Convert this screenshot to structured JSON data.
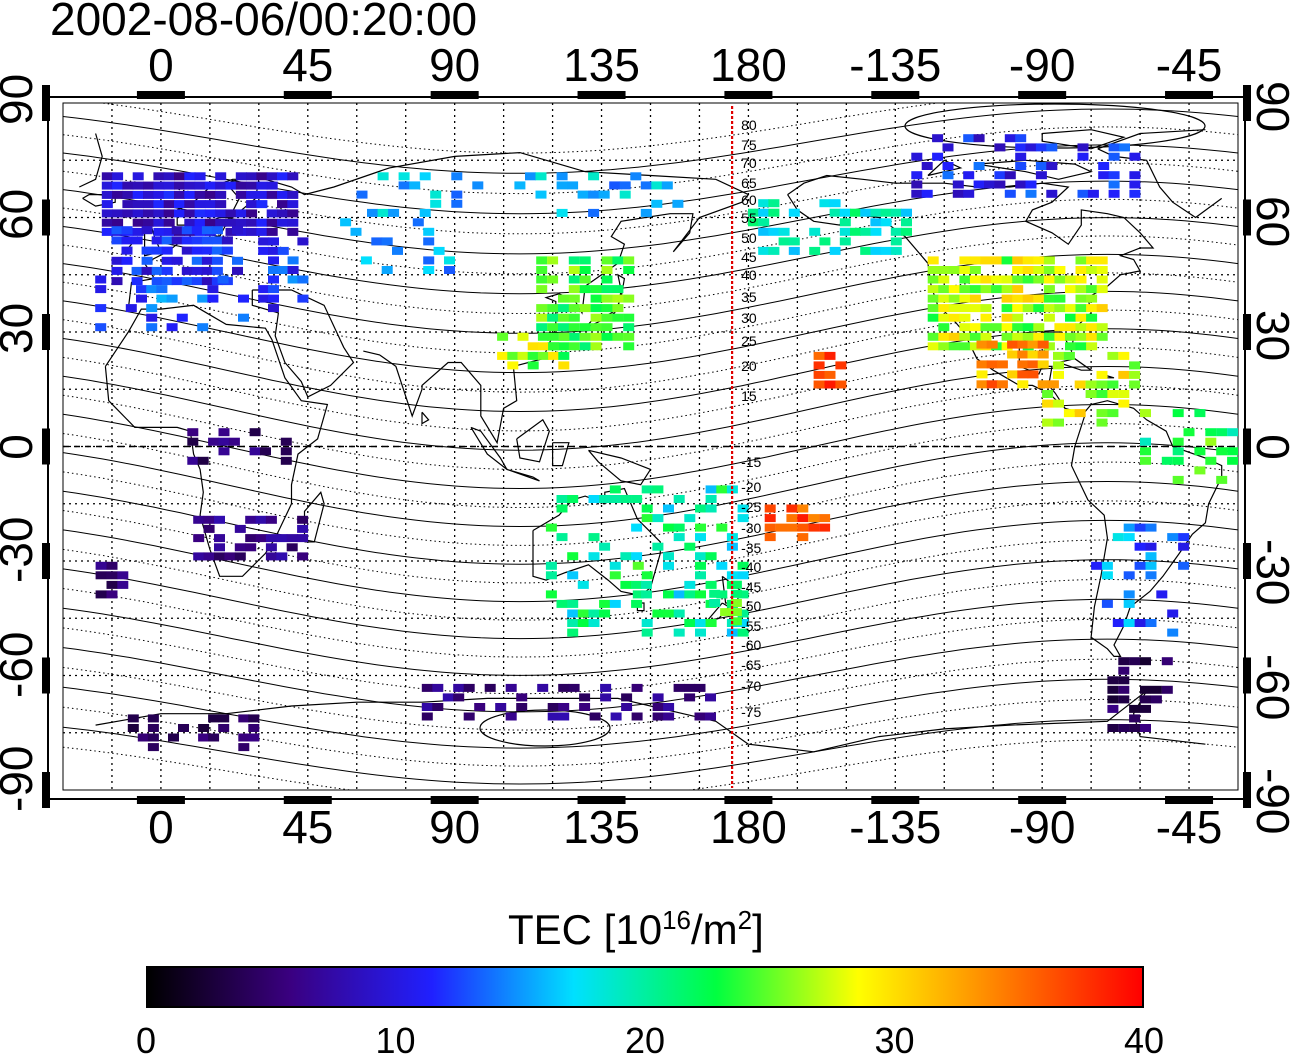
{
  "timestamp": "2002-08-06/00:20:00",
  "lon_labels": [
    "0",
    "45",
    "90",
    "135",
    "180",
    "-135",
    "-90",
    "-45"
  ],
  "lat_labels": [
    "90",
    "60",
    "30",
    "0",
    "-30",
    "-60",
    "-90"
  ],
  "colorbar": {
    "title": "TEC  [10",
    "title_sup": "16",
    "title_mid": "/m",
    "title_sup2": "2",
    "title_end": "]",
    "min": 0,
    "max": 40,
    "ticks": [
      "0",
      "10",
      "20",
      "30",
      "40"
    ],
    "colors": [
      "#000000",
      "#3a0080",
      "#2020ff",
      "#00e0ff",
      "#00ff40",
      "#ffff00",
      "#ff8000",
      "#ff0000"
    ]
  },
  "terminator_longitude": 175,
  "contour_labels": [
    "80",
    "75",
    "70",
    "65",
    "60",
    "55",
    "50",
    "45",
    "40",
    "35",
    "30",
    "25",
    "20",
    "15",
    "-15",
    "-20",
    "-25",
    "-30",
    "-35",
    "-40",
    "-45",
    "-50",
    "-55",
    "-60",
    "-65",
    "-70",
    "-75"
  ]
}
